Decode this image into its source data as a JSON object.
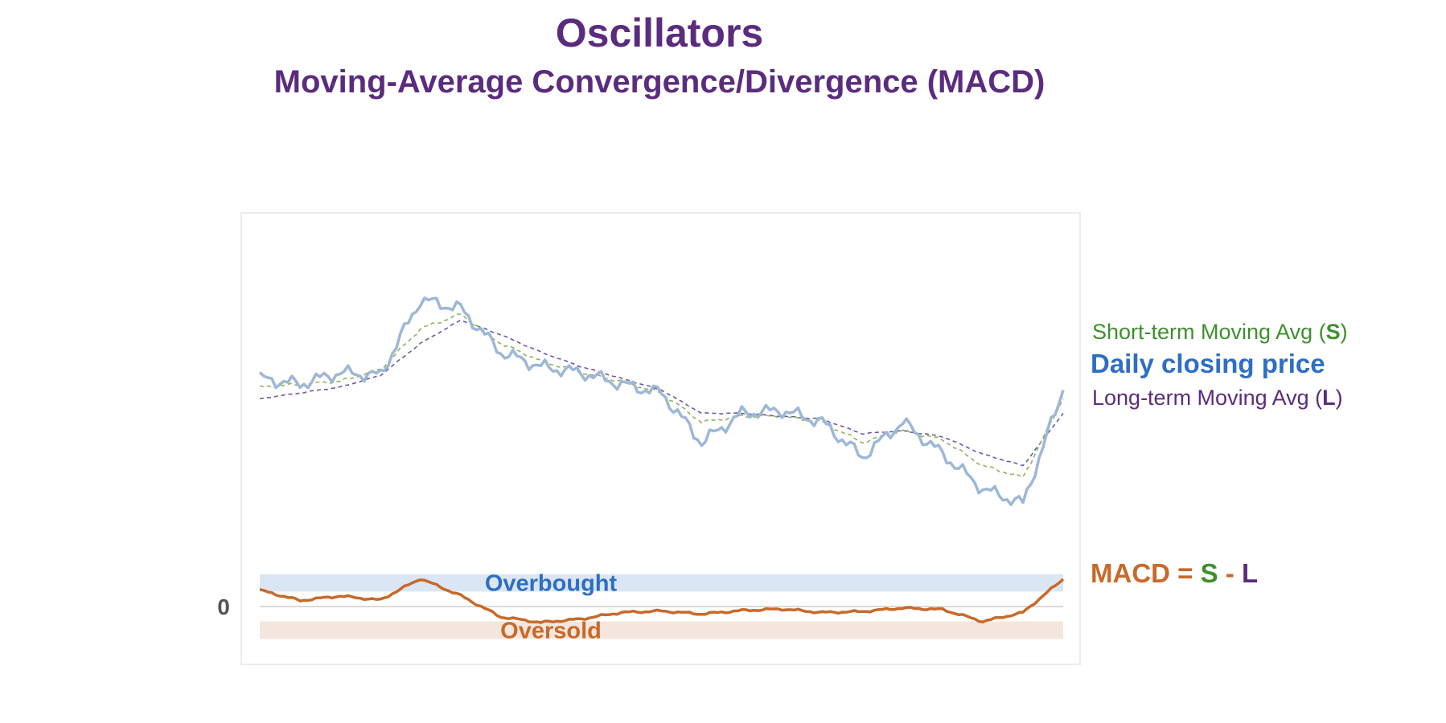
{
  "header": {
    "title": "Oscillators",
    "subtitle": "Moving-Average Convergence/Divergence (MACD)"
  },
  "legend": {
    "short_prefix": "Short-term Moving Avg (",
    "short_letter": "S",
    "short_suffix": ")",
    "price": "Daily closing price",
    "long_prefix": "Long-term Moving Avg (",
    "long_letter": "L",
    "long_suffix": ")",
    "macd_prefix": "MACD = ",
    "macd_s": "S",
    "macd_minus": " - ",
    "macd_l": "L"
  },
  "colors": {
    "title": "#5b2c7d",
    "price": "#9db7d6",
    "short_ma": "#8fb25a",
    "long_ma": "#6a5aa8",
    "macd": "#c8692a",
    "overbought_band": "#dbe6f4",
    "oversold_band": "#f4e6dc",
    "overbought_text": "#2e6ec4",
    "oversold_text": "#c8692a"
  },
  "chart_data": {
    "type": "line",
    "x": [
      0,
      5,
      10,
      15,
      20,
      25,
      30,
      35,
      40,
      45,
      50,
      55,
      60,
      65,
      70,
      75,
      80,
      85,
      90,
      95,
      100
    ],
    "series": [
      {
        "name": "Daily closing price",
        "values": [
          48,
          46,
          50,
          49,
          75,
          72,
          57,
          52,
          50,
          46,
          43,
          26,
          36,
          37,
          33,
          21,
          33,
          22,
          10,
          5,
          44
        ]
      },
      {
        "name": "Short-term Moving Avg (S)",
        "values": [
          45,
          46,
          47,
          51,
          65,
          70,
          60,
          54,
          50,
          47,
          43,
          33,
          35,
          35,
          33,
          26,
          30,
          27,
          18,
          14,
          41
        ]
      },
      {
        "name": "Long-term Moving Avg (L)",
        "values": [
          41,
          43,
          45,
          49,
          60,
          68,
          63,
          57,
          52,
          48,
          44,
          36,
          36,
          35,
          34,
          29,
          30,
          28,
          22,
          18,
          36
        ]
      }
    ],
    "macd": {
      "name": "MACD = S - L",
      "values": [
        3.3,
        1.2,
        2.1,
        1.3,
        5.6,
        2.2,
        -2.1,
        -3.2,
        -2.5,
        -1.2,
        -0.9,
        -1.5,
        -0.8,
        -0.5,
        -1.2,
        -1.0,
        -0.3,
        -0.6,
        -3.0,
        -1.2,
        5.5
      ],
      "overbought_label": "Overbought",
      "oversold_label": "Oversold",
      "zero_label": "0",
      "overbought_range": [
        3,
        6.5
      ],
      "oversold_range": [
        -6.5,
        -3
      ]
    },
    "xlabel": "",
    "ylabel": "",
    "grid": false,
    "legend": "right"
  }
}
